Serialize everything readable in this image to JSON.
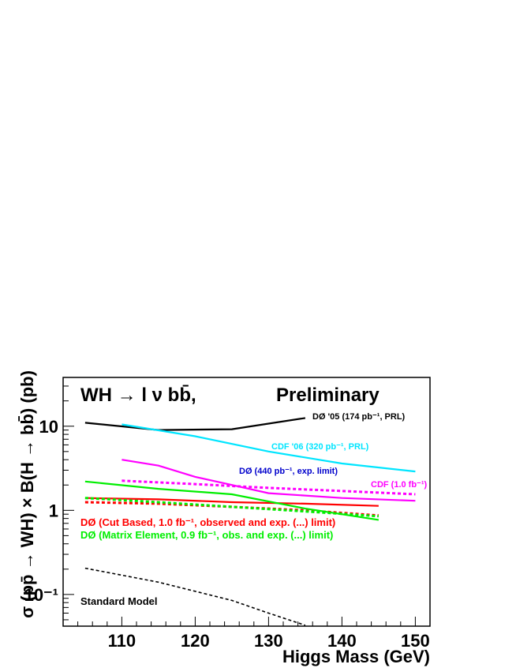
{
  "chart_data": {
    "type": "line",
    "title": "WH → l ν bb̄,",
    "subtitle": "Preliminary",
    "xlabel": "Higgs Mass (GeV)",
    "ylabel": "σ (pp̄ → WH) × B(H → bb̄) (pb)",
    "xlim": [
      102,
      152
    ],
    "ylim": [
      0.042,
      38
    ],
    "y_scale": "log",
    "x_ticks": [
      "110",
      "120",
      "130",
      "140",
      "150"
    ],
    "y_ticks": [
      {
        "value": 10,
        "label": "10"
      },
      {
        "value": 1,
        "label": "1"
      },
      {
        "value": 0.1,
        "label": "10⁻¹"
      }
    ],
    "grid": false,
    "series": [
      {
        "name": "DØ '05 (174 pb⁻¹, PRL)",
        "color": "#000000",
        "style": "solid",
        "x": [
          105,
          115,
          125,
          135
        ],
        "y": [
          11,
          9.0,
          9.2,
          12.5
        ]
      },
      {
        "name": "CDF '06 (320 pb⁻¹, PRL)",
        "color": "#00e5ff",
        "style": "solid",
        "x": [
          110,
          120,
          130,
          140,
          150
        ],
        "y": [
          10.5,
          7.6,
          5.0,
          3.6,
          2.9
        ]
      },
      {
        "name": "DØ (440 pb⁻¹, exp. limit)",
        "color": "#ff00ff",
        "style": "solid",
        "x": [
          110,
          115,
          120,
          125,
          130,
          140,
          150
        ],
        "y": [
          4.0,
          3.4,
          2.5,
          2.0,
          1.6,
          1.4,
          1.3
        ]
      },
      {
        "name": "CDF (1.0 fb⁻¹)",
        "color": "#ff00ff",
        "style": "dashed",
        "x": [
          110,
          120,
          130,
          140,
          150
        ],
        "y": [
          2.25,
          2.05,
          1.85,
          1.7,
          1.55
        ]
      },
      {
        "name": "DØ (Cut Based, 1.0 fb⁻¹, observed)",
        "color": "#ff0000",
        "style": "solid",
        "x": [
          105,
          115,
          125,
          135,
          145
        ],
        "y": [
          1.4,
          1.35,
          1.25,
          1.2,
          1.13
        ]
      },
      {
        "name": "DØ (Cut Based, 1.0 fb⁻¹, exp.)",
        "color": "#ff0000",
        "style": "dashed",
        "x": [
          105,
          115,
          125,
          135,
          145
        ],
        "y": [
          1.25,
          1.2,
          1.1,
          1.0,
          0.87
        ]
      },
      {
        "name": "DØ (Matrix Element, 0.9 fb⁻¹, obs.)",
        "color": "#00ee00",
        "style": "solid",
        "x": [
          105,
          115,
          125,
          135,
          145
        ],
        "y": [
          2.2,
          1.8,
          1.55,
          1.05,
          0.77
        ]
      },
      {
        "name": "DØ (Matrix Element, 0.9 fb⁻¹, exp.)",
        "color": "#00ee00",
        "style": "dashed",
        "x": [
          105,
          115,
          125,
          135,
          145
        ],
        "y": [
          1.4,
          1.25,
          1.1,
          0.97,
          0.85
        ]
      },
      {
        "name": "Standard Model",
        "color": "#000000",
        "style": "dashed",
        "x": [
          105,
          115,
          125,
          130,
          135
        ],
        "y": [
          0.205,
          0.14,
          0.085,
          0.06,
          0.043
        ]
      }
    ],
    "annotations": [
      {
        "text": "DØ '05  (174 pb⁻¹, PRL)",
        "color": "#000000"
      },
      {
        "text": "CDF '06  (320 pb⁻¹, PRL)",
        "color": "#00e5ff"
      },
      {
        "text": "DØ   (440 pb⁻¹, exp. limit)",
        "color": "#0000cc"
      },
      {
        "text": "CDF (1.0 fb⁻¹)",
        "color": "#ff00ff"
      },
      {
        "text": "DØ   (Cut Based, 1.0 fb⁻¹, observed and exp. (...) limit)",
        "color": "#ff0000"
      },
      {
        "text": "DØ   (Matrix Element, 0.9 fb⁻¹, obs.  and exp. (...) limit)",
        "color": "#00ee00"
      },
      {
        "text": "Standard Model",
        "color": "#000000"
      }
    ]
  }
}
